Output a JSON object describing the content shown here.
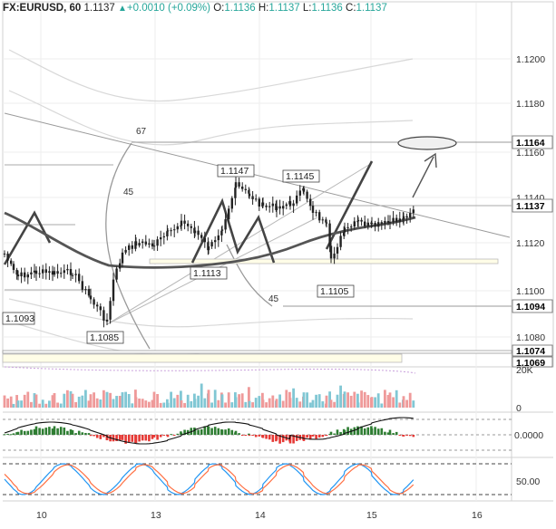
{
  "header": {
    "symbol": "FX:EURUSD, 60",
    "price": "1.1137",
    "change": "+0.0010 (+0.09%)",
    "o_label": "O:",
    "o": "1.1136",
    "h_label": "H:",
    "h": "1.1137",
    "l_label": "L:",
    "l": "1.1136",
    "c_label": "C:",
    "c": "1.1137",
    "up_icon": "triangle-up-icon"
  },
  "price_axis": {
    "ticks": [
      "1.1200",
      "1.1180",
      "1.1160",
      "1.1140",
      "1.1120",
      "1.1100",
      "1.1080"
    ],
    "badges": [
      {
        "text": "1.1164",
        "bg": "#ffffff",
        "fg": "#000000"
      },
      {
        "text": "1.1137",
        "bg": "#ffffff",
        "fg": "#000000"
      },
      {
        "text": "1.1094",
        "bg": "#ffffff",
        "fg": "#000000"
      },
      {
        "text": "1.1074",
        "bg": "#ffffff",
        "fg": "#000000"
      },
      {
        "text": "1.1069",
        "bg": "#ffffff",
        "fg": "#000000"
      }
    ]
  },
  "annotations": {
    "labels": [
      "1.1147",
      "1.1145",
      "1.1113",
      "1.1105",
      "1.1085",
      "1.1093"
    ],
    "fib": [
      "67",
      "45",
      "45"
    ]
  },
  "volume_axis": {
    "ticks": [
      "20K",
      "0"
    ]
  },
  "macd_axis": {
    "ticks": [
      "0.0000"
    ]
  },
  "stoch_axis": {
    "ticks": [
      "50.00"
    ]
  },
  "time_axis": {
    "ticks": [
      "10",
      "13",
      "14",
      "15",
      "16"
    ]
  },
  "colors": {
    "up": "#26a69a",
    "down": "#ef5350",
    "candle": "#222222",
    "ma": "#555555",
    "grid": "#eeeeee"
  }
}
